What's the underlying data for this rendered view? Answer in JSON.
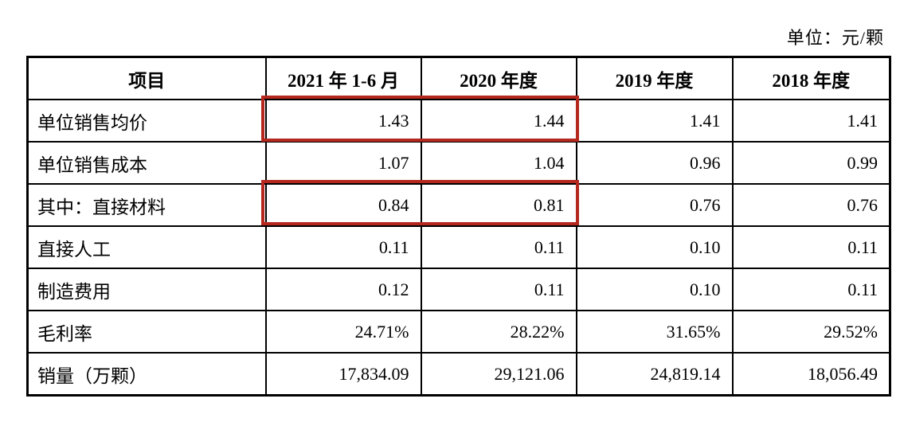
{
  "meta": {
    "unit_label": "单位：元/颗"
  },
  "table": {
    "columns": [
      "项目",
      "2021 年 1-6 月",
      "2020 年度",
      "2019 年度",
      "2018 年度"
    ],
    "rows": [
      {
        "label": "单位销售均价",
        "values": [
          "1.43",
          "1.44",
          "1.41",
          "1.41"
        ],
        "highlighted_cols": [
          0,
          1
        ]
      },
      {
        "label": "单位销售成本",
        "values": [
          "1.07",
          "1.04",
          "0.96",
          "0.99"
        ],
        "highlighted_cols": []
      },
      {
        "label": "其中：直接材料",
        "values": [
          "0.84",
          "0.81",
          "0.76",
          "0.76"
        ],
        "highlighted_cols": [
          0,
          1
        ]
      },
      {
        "label": "直接人工",
        "values": [
          "0.11",
          "0.11",
          "0.10",
          "0.11"
        ],
        "highlighted_cols": []
      },
      {
        "label": "制造费用",
        "values": [
          "0.12",
          "0.11",
          "0.10",
          "0.11"
        ],
        "highlighted_cols": []
      },
      {
        "label": "毛利率",
        "values": [
          "24.71%",
          "28.22%",
          "31.65%",
          "29.52%"
        ],
        "highlighted_cols": []
      },
      {
        "label": "销量（万颗）",
        "values": [
          "17,834.09",
          "29,121.06",
          "24,819.14",
          "18,056.49"
        ],
        "highlighted_cols": []
      }
    ]
  },
  "highlight": {
    "color": "#b4281e"
  }
}
